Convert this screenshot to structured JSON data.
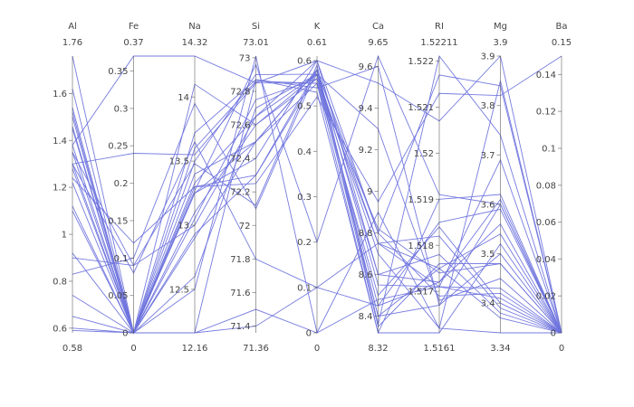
{
  "chart_data": {
    "type": "parallel_coordinates",
    "line_color": "#6f74dd",
    "dimensions": [
      {
        "name": "Al",
        "range": [
          0.58,
          1.76
        ],
        "range_labels": [
          "1.76",
          "0.58"
        ],
        "ticks": [
          0.6,
          0.8,
          1,
          1.2,
          1.4,
          1.6
        ],
        "tick_labels": [
          "0.6",
          "0.8",
          "1",
          "1.2",
          "1.4",
          "1.6"
        ]
      },
      {
        "name": "Fe",
        "range": [
          0,
          0.37
        ],
        "range_labels": [
          "0.37",
          "0"
        ],
        "ticks": [
          0,
          0.05,
          0.1,
          0.15,
          0.2,
          0.25,
          0.3,
          0.35
        ],
        "tick_labels": [
          "0",
          "0.05",
          "0.1",
          "0.15",
          "0.2",
          "0.25",
          "0.3",
          "0.35"
        ]
      },
      {
        "name": "Na",
        "range": [
          12.16,
          14.32
        ],
        "range_labels": [
          "14.32",
          "12.16"
        ],
        "ticks": [
          12.5,
          13,
          13.5,
          14
        ],
        "tick_labels": [
          "12.5",
          "13",
          "13.5",
          "14"
        ]
      },
      {
        "name": "Si",
        "range": [
          71.36,
          73.01
        ],
        "range_labels": [
          "73.01",
          "71.36"
        ],
        "ticks": [
          71.4,
          71.6,
          71.8,
          72,
          72.2,
          72.4,
          72.6,
          72.8,
          73
        ],
        "tick_labels": [
          "71.4",
          "71.6",
          "71.8",
          "72",
          "72.2",
          "72.4",
          "72.6",
          "72.8",
          "73"
        ]
      },
      {
        "name": "K",
        "range": [
          0,
          0.61
        ],
        "range_labels": [
          "0.61",
          "0"
        ],
        "ticks": [
          0,
          0.1,
          0.2,
          0.3,
          0.4,
          0.5,
          0.6
        ],
        "tick_labels": [
          "0",
          "0.1",
          "0.2",
          "0.3",
          "0.4",
          "0.5",
          "0.6"
        ]
      },
      {
        "name": "Ca",
        "range": [
          8.32,
          9.65
        ],
        "range_labels": [
          "9.65",
          "8.32"
        ],
        "ticks": [
          8.4,
          8.6,
          8.8,
          9,
          9.2,
          9.4,
          9.6
        ],
        "tick_labels": [
          "8.4",
          "8.6",
          "8.8",
          "9",
          "9.2",
          "9.4",
          "9.6"
        ]
      },
      {
        "name": "RI",
        "range": [
          1.5161,
          1.52211
        ],
        "range_labels": [
          "1.52211",
          "1.5161"
        ],
        "ticks": [
          1.517,
          1.518,
          1.519,
          1.52,
          1.521,
          1.522
        ],
        "tick_labels": [
          "1.517",
          "1.518",
          "1.519",
          "1.52",
          "1.521",
          "1.522"
        ]
      },
      {
        "name": "Mg",
        "range": [
          3.34,
          3.9
        ],
        "range_labels": [
          "3.9",
          "3.34"
        ],
        "ticks": [
          3.4,
          3.5,
          3.6,
          3.7,
          3.8,
          3.9
        ],
        "tick_labels": [
          "3.4",
          "3.5",
          "3.6",
          "3.7",
          "3.8",
          "3.9"
        ]
      },
      {
        "name": "Ba",
        "range": [
          0,
          0.15
        ],
        "range_labels": [
          "0.15",
          "0"
        ],
        "ticks": [
          0,
          0.02,
          0.04,
          0.06,
          0.08,
          0.1,
          0.12,
          0.14
        ],
        "tick_labels": [
          "0",
          "0.02",
          "0.04",
          "0.06",
          "0.08",
          "0.1",
          "0.12",
          "0.14"
        ]
      }
    ],
    "records": [
      [
        1.76,
        0.0,
        12.16,
        72.87,
        0.54,
        9.6,
        1.5167,
        3.5,
        0.0
      ],
      [
        1.62,
        0.0,
        12.6,
        72.7,
        0.57,
        9.3,
        1.5168,
        3.45,
        0.0
      ],
      [
        1.54,
        0.0,
        12.9,
        72.5,
        0.58,
        8.8,
        1.5169,
        3.42,
        0.0
      ],
      [
        1.52,
        0.0,
        13.1,
        72.6,
        0.56,
        8.75,
        1.5175,
        3.54,
        0.0
      ],
      [
        1.5,
        0.0,
        13.25,
        72.4,
        0.6,
        8.6,
        1.5178,
        3.38,
        0.0
      ],
      [
        1.38,
        0.0,
        13.3,
        72.3,
        0.58,
        8.55,
        1.5171,
        3.43,
        0.0
      ],
      [
        1.35,
        0.0,
        13.4,
        72.5,
        0.55,
        8.5,
        1.5184,
        3.4,
        0.0
      ],
      [
        1.3,
        0.0,
        13.33,
        72.65,
        0.57,
        8.45,
        1.5172,
        3.56,
        0.0
      ],
      [
        1.28,
        0.0,
        13.05,
        72.75,
        0.56,
        8.4,
        1.5167,
        3.6,
        0.0
      ],
      [
        1.22,
        0.0,
        13.5,
        72.9,
        0.57,
        8.35,
        1.5176,
        3.48,
        0.0
      ],
      [
        1.12,
        0.0,
        13.6,
        72.86,
        0.55,
        8.32,
        1.519,
        3.62,
        0.0
      ],
      [
        0.92,
        0.0,
        13.72,
        72.87,
        0.53,
        8.32,
        1.5161,
        3.52,
        0.0
      ],
      [
        0.83,
        0.1,
        13.95,
        72.1,
        0.58,
        8.75,
        1.5171,
        3.69,
        0.0
      ],
      [
        0.74,
        0.0,
        14.1,
        72.6,
        0.57,
        8.6,
        1.5172,
        3.61,
        0.0
      ],
      [
        0.65,
        0.0,
        13.25,
        72.5,
        0.58,
        8.4,
        1.5175,
        3.37,
        0.0
      ],
      [
        0.59,
        0.0,
        12.93,
        72.3,
        0.57,
        8.7,
        1.5162,
        3.34,
        0.0
      ],
      [
        1.46,
        0.0,
        12.16,
        71.4,
        0.1,
        8.75,
        1.5182,
        3.39,
        0.0
      ],
      [
        1.1,
        0.0,
        13.27,
        72.96,
        0.2,
        9.65,
        1.5191,
        3.6,
        0.0
      ],
      [
        0.9,
        0.09,
        13.0,
        72.65,
        0.6,
        8.8,
        1.5217,
        3.84,
        0.0
      ],
      [
        1.45,
        0.0,
        12.5,
        73.01,
        0.0,
        8.9,
        1.5162,
        3.85,
        0.0
      ],
      [
        1.38,
        0.37,
        14.32,
        72.85,
        0.55,
        8.82,
        1.5174,
        3.48,
        0.0
      ],
      [
        1.3,
        0.24,
        13.55,
        72.85,
        0.6,
        9.52,
        1.5207,
        3.9,
        0.0
      ],
      [
        1.24,
        0.12,
        13.3,
        72.25,
        0.52,
        8.95,
        1.5213,
        3.82,
        0.15
      ],
      [
        1.35,
        0.09,
        13.48,
        72.12,
        0.59,
        8.36,
        1.52211,
        3.74,
        0.0
      ],
      [
        1.3,
        0.08,
        13.65,
        71.8,
        0.1,
        8.45,
        1.5185,
        3.59,
        0.0
      ],
      [
        0.6,
        0.0,
        12.16,
        71.5,
        0.0,
        8.48,
        1.5171,
        3.41,
        0.0
      ]
    ]
  }
}
